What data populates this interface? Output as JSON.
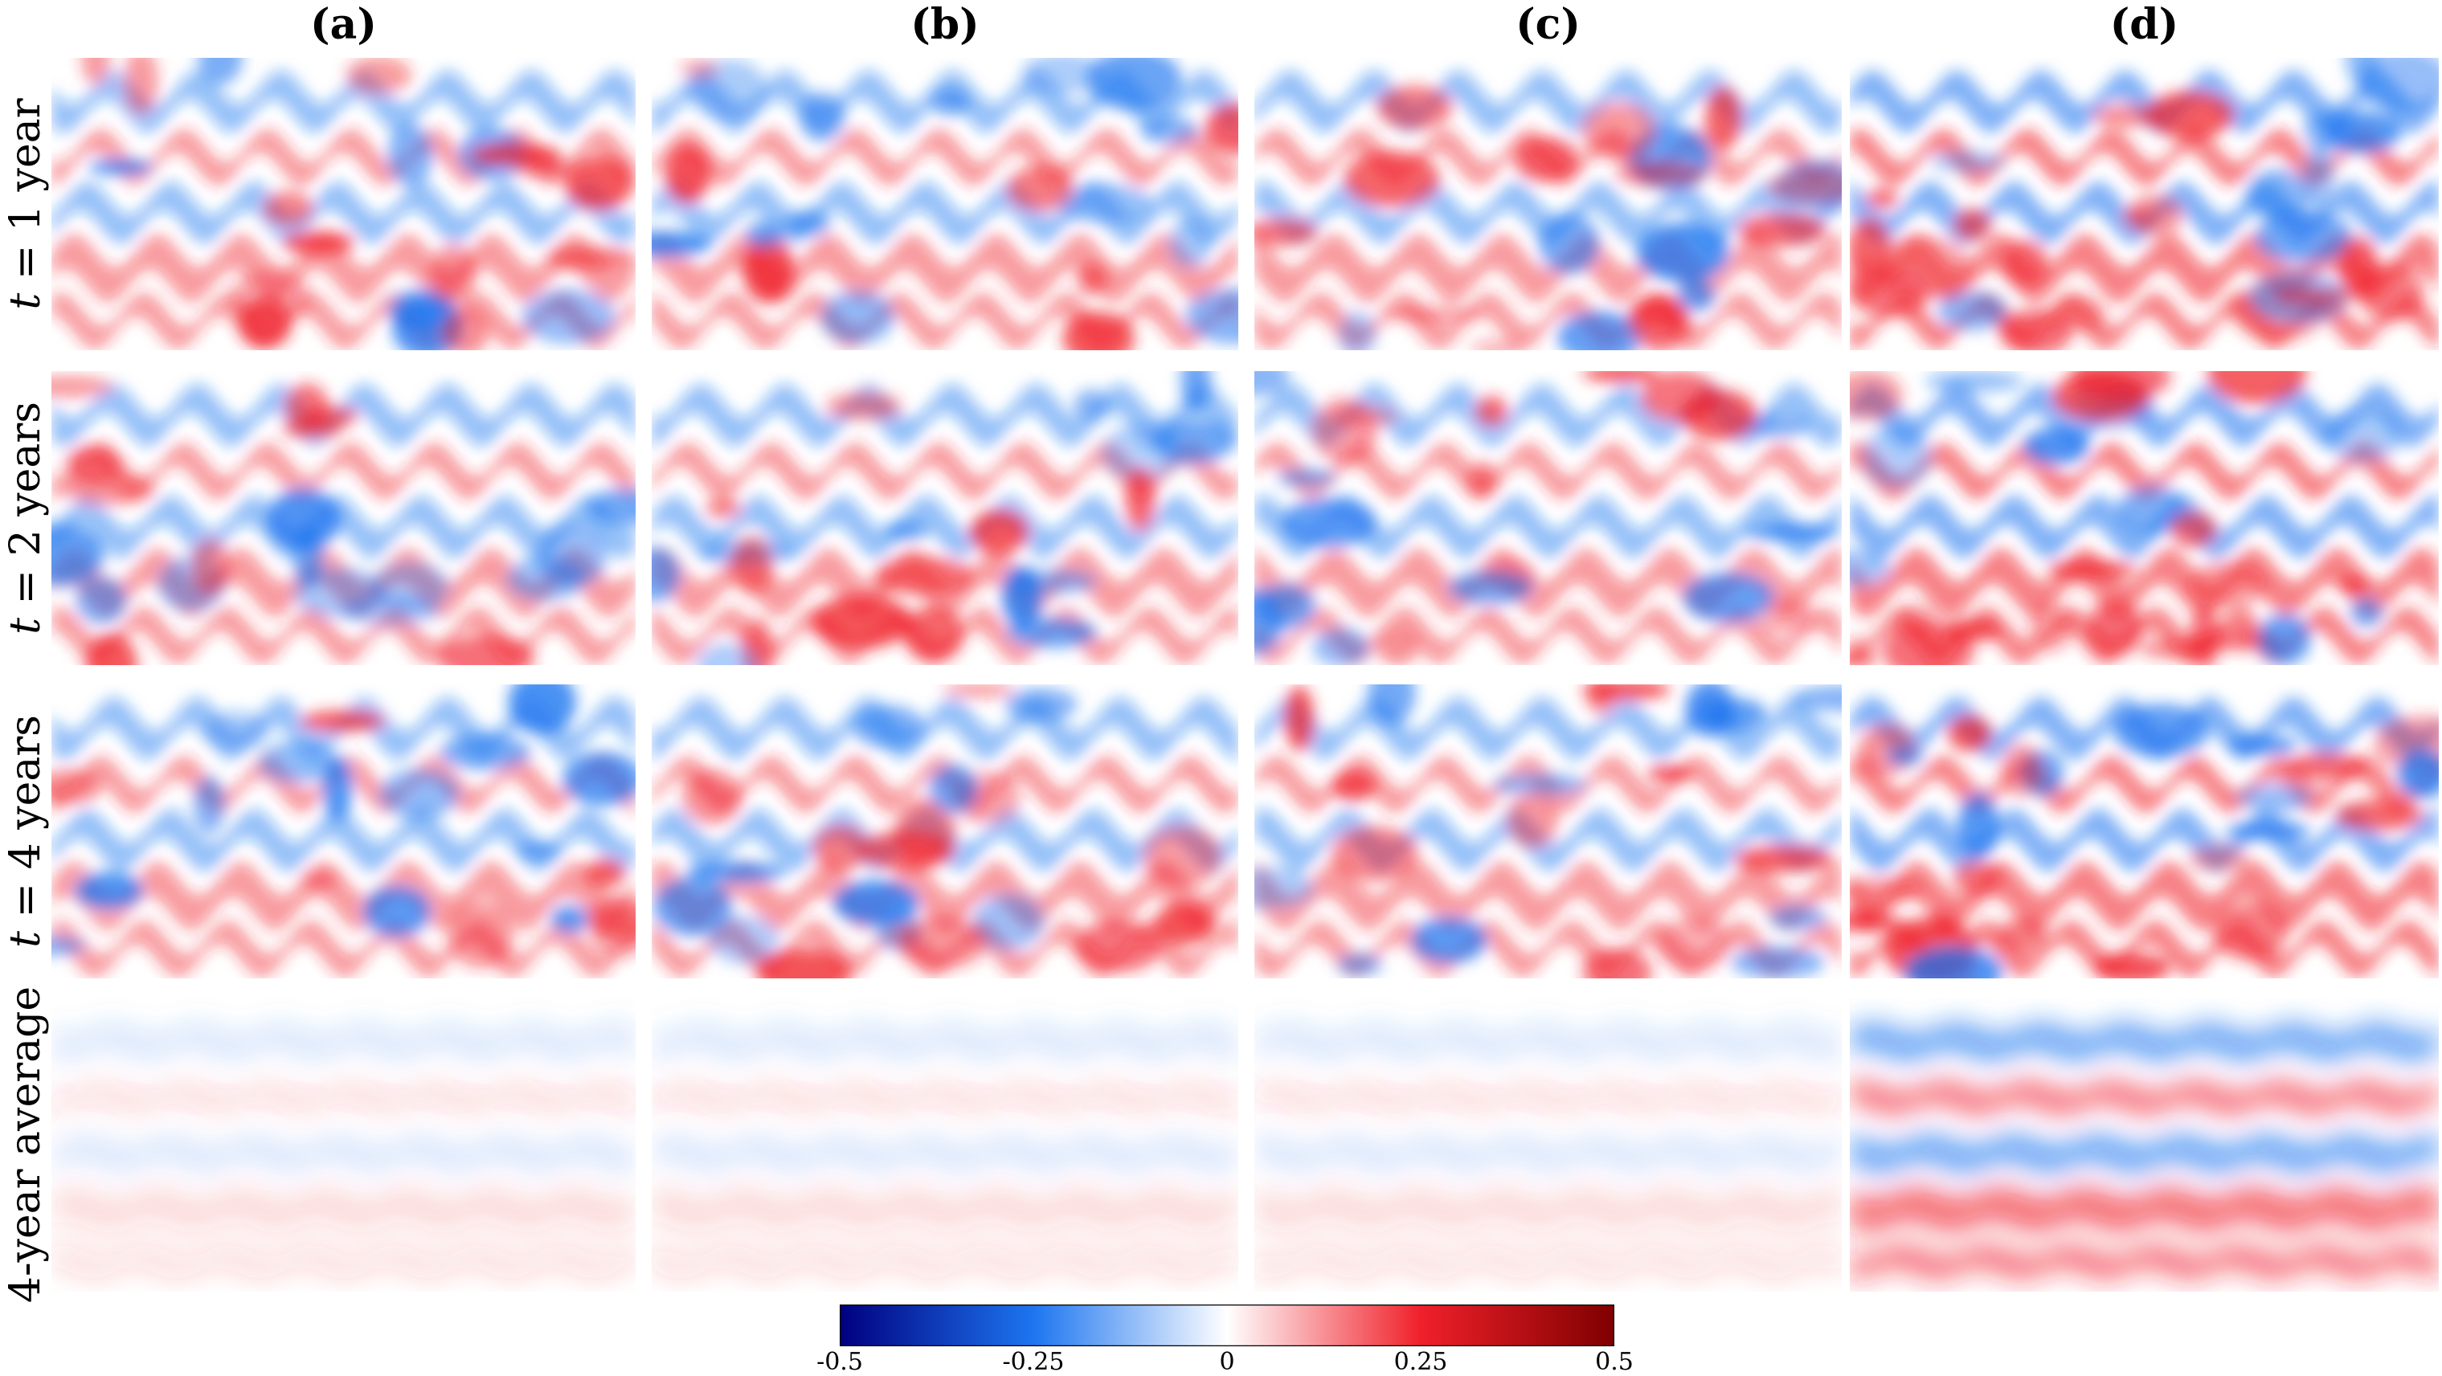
{
  "figure": {
    "columns": [
      {
        "label": "(a)"
      },
      {
        "label": "(b)"
      },
      {
        "label": "(c)"
      },
      {
        "label": "(d)"
      }
    ],
    "rows": [
      {
        "label_prefix": "t",
        "label_suffix": " = 1 year"
      },
      {
        "label_prefix": "t",
        "label_suffix": " = 2 years"
      },
      {
        "label_prefix": "t",
        "label_suffix": " = 4 years"
      },
      {
        "label_prefix": "",
        "label_suffix": "4-year average"
      }
    ]
  },
  "colorbar": {
    "min": -0.5,
    "max": 0.5,
    "colors": {
      "negative": "#00007f",
      "mid_negative": "#1d75f0",
      "zero": "#ffffff",
      "mid_positive": "#f0202a",
      "positive": "#7f0000"
    },
    "ticks": [
      {
        "value": -0.5,
        "label": "-0.5"
      },
      {
        "value": -0.25,
        "label": "-0.25"
      },
      {
        "value": 0,
        "label": "0"
      },
      {
        "value": 0.25,
        "label": "0.25"
      },
      {
        "value": 0.5,
        "label": "0.5"
      }
    ]
  }
}
